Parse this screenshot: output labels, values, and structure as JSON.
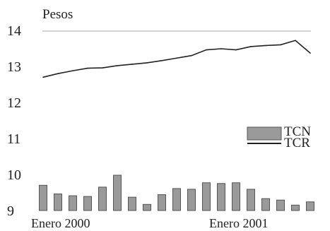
{
  "chart_data": {
    "type": "bar+line",
    "unit_label": "Pesos",
    "y_ticks": [
      "14",
      "13",
      "12",
      "11",
      "10",
      "9"
    ],
    "ylim": [
      9,
      14
    ],
    "x_tick_labels": [
      "Enero 2000",
      "Enero 2001"
    ],
    "x_tick_positions": [
      1,
      13
    ],
    "legend": {
      "position": "right",
      "items": [
        {
          "label": "TCN",
          "kind": "bar"
        },
        {
          "label": "TCR",
          "kind": "line"
        }
      ]
    },
    "series": [
      {
        "name": "TCN",
        "kind": "bar",
        "color": "#9a9a9a",
        "values": [
          9.7,
          9.46,
          9.41,
          9.39,
          9.65,
          9.98,
          9.37,
          9.17,
          9.44,
          9.61,
          9.59,
          9.77,
          9.75,
          9.77,
          9.59,
          9.33,
          9.29,
          9.15,
          9.24
        ]
      },
      {
        "name": "TCR",
        "kind": "line",
        "color": "#222222",
        "values": [
          12.7,
          12.8,
          12.88,
          12.95,
          12.96,
          13.02,
          13.06,
          13.1,
          13.16,
          13.23,
          13.3,
          13.46,
          13.49,
          13.46,
          13.55,
          13.58,
          13.6,
          13.72,
          13.37
        ]
      }
    ],
    "grid": false
  }
}
